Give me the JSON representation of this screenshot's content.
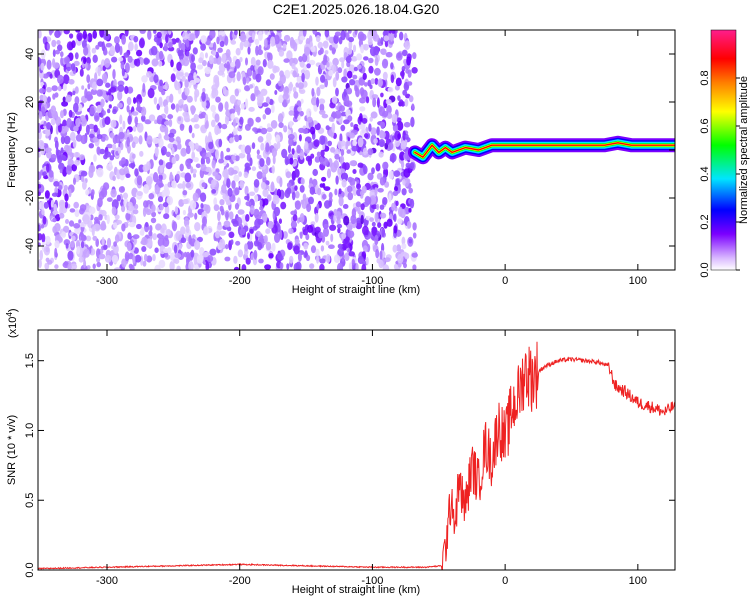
{
  "title": "C2E1.2025.026.18.04.G20",
  "chart_data": [
    {
      "type": "heatmap",
      "xlabel": "Height of straight line (km)",
      "ylabel": "Frequency (Hz)",
      "xlim": [
        -352,
        128
      ],
      "ylim": [
        -50,
        50
      ],
      "xticks": [
        -300,
        -200,
        -100,
        0,
        100
      ],
      "yticks": [
        -40,
        -20,
        0,
        20,
        40
      ],
      "colorbar": {
        "label": "Normalized spectral amplitude",
        "range": [
          0,
          1
        ],
        "ticks": [
          "0.0",
          "0.2",
          "0.4",
          "0.6",
          "0.8"
        ],
        "colormap": [
          "#ffffff",
          "#7b00ff",
          "#0000ff",
          "#00e5ff",
          "#00ff00",
          "#ffff00",
          "#ff7f00",
          "#ff0000",
          "#ff1e8c"
        ]
      },
      "noise_region_xlim": [
        -352,
        -68
      ],
      "signal_trace": {
        "x": [
          -68,
          -62,
          -55,
          -50,
          -45,
          -40,
          -35,
          -30,
          -20,
          -10,
          0,
          20,
          40,
          60,
          75,
          85,
          95,
          110,
          128
        ],
        "freq": [
          -1,
          -3,
          2,
          -1,
          1,
          -1,
          0,
          1,
          0,
          2,
          2,
          2,
          2,
          2,
          2,
          3,
          2,
          2,
          2
        ]
      }
    },
    {
      "type": "line",
      "xlabel": "Height of straight line (km)",
      "ylabel": "SNR (10 * v/v)",
      "y_multiplier": "(x10",
      "y_multiplier_exp": "4",
      "xlim": [
        -352,
        128
      ],
      "ylim": [
        0,
        1.72
      ],
      "xticks": [
        -300,
        -200,
        -100,
        0,
        100
      ],
      "yticks": [
        "0.0",
        "0.5",
        "1.0",
        "1.5"
      ],
      "series": [
        {
          "color": "#ee2222",
          "x": [
            -352,
            -300,
            -250,
            -200,
            -150,
            -100,
            -60,
            -48,
            -45,
            -42,
            -40,
            -38,
            -35,
            -30,
            -25,
            -20,
            -15,
            -10,
            -5,
            0,
            5,
            10,
            15,
            20,
            30,
            40,
            50,
            60,
            70,
            78,
            83,
            90,
            100,
            110,
            120,
            128
          ],
          "values": [
            0.01,
            0.02,
            0.03,
            0.04,
            0.03,
            0.02,
            0.02,
            0.03,
            0.15,
            0.4,
            0.55,
            0.3,
            0.62,
            0.45,
            0.75,
            0.62,
            0.9,
            0.78,
            1.05,
            0.92,
            1.15,
            1.25,
            1.42,
            1.38,
            1.46,
            1.5,
            1.51,
            1.5,
            1.49,
            1.46,
            1.32,
            1.28,
            1.2,
            1.17,
            1.13,
            1.18
          ]
        }
      ]
    }
  ]
}
